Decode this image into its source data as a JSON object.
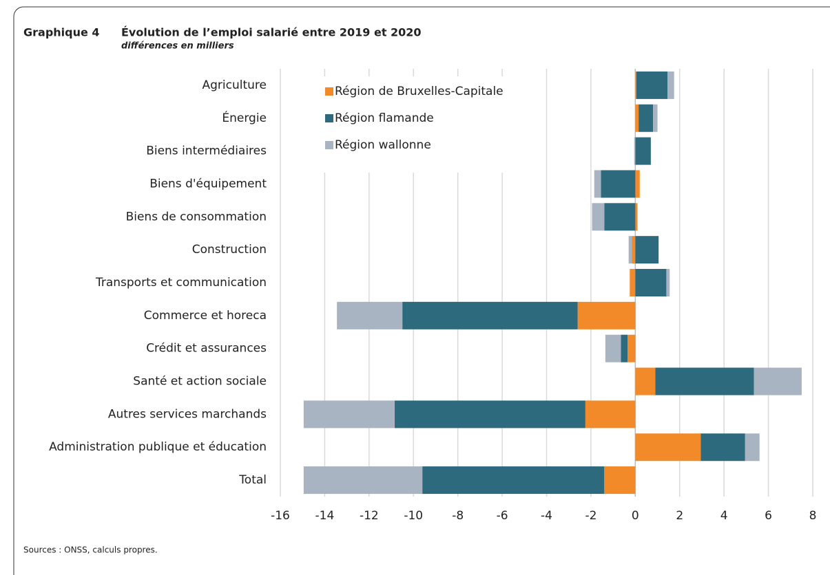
{
  "header": {
    "label": "Graphique 4",
    "title": "Évolution de l’emploi salarié entre 2019 et 2020",
    "subtitle": "différences en milliers"
  },
  "chart_data": {
    "type": "bar",
    "orientation": "horizontal",
    "stacked": true,
    "categories": [
      "Agriculture",
      "Énergie",
      "Biens intermédiaires",
      "Biens d'équipement",
      "Biens de consommation",
      "Construction",
      "Transports et communication",
      "Commerce et horeca",
      "Crédit et assurances",
      "Santé et action sociale",
      "Autres services marchands",
      "Administration publique et éducation",
      "Total"
    ],
    "series": [
      {
        "name": "Région de Bruxelles-Capitale",
        "color": "#f28a2a",
        "values": [
          0.05,
          0.15,
          0,
          0.2,
          0.1,
          -0.15,
          -0.25,
          -2.6,
          -0.35,
          0.9,
          -2.25,
          2.95,
          -1.4
        ]
      },
      {
        "name": "Région flamande",
        "color": "#2e6a7e",
        "values": [
          1.4,
          0.65,
          0.7,
          -1.55,
          -1.4,
          1.05,
          1.4,
          -7.9,
          -0.3,
          4.45,
          -8.6,
          2.0,
          -8.2
        ]
      },
      {
        "name": "Région wallonne",
        "color": "#a9b4c2",
        "values": [
          0.3,
          0.2,
          -0.05,
          -0.3,
          -0.55,
          -0.15,
          0.15,
          -2.95,
          -0.7,
          2.15,
          -4.1,
          0.65,
          -5.35
        ]
      }
    ],
    "xlim": [
      -16,
      8
    ],
    "xticks": [
      -16,
      -14,
      -12,
      -10,
      -8,
      -6,
      -4,
      -2,
      0,
      2,
      4,
      6,
      8
    ],
    "grid": true,
    "legend": "upper left"
  },
  "footer": {
    "source": "Sources : ONSS, calculs propres."
  }
}
